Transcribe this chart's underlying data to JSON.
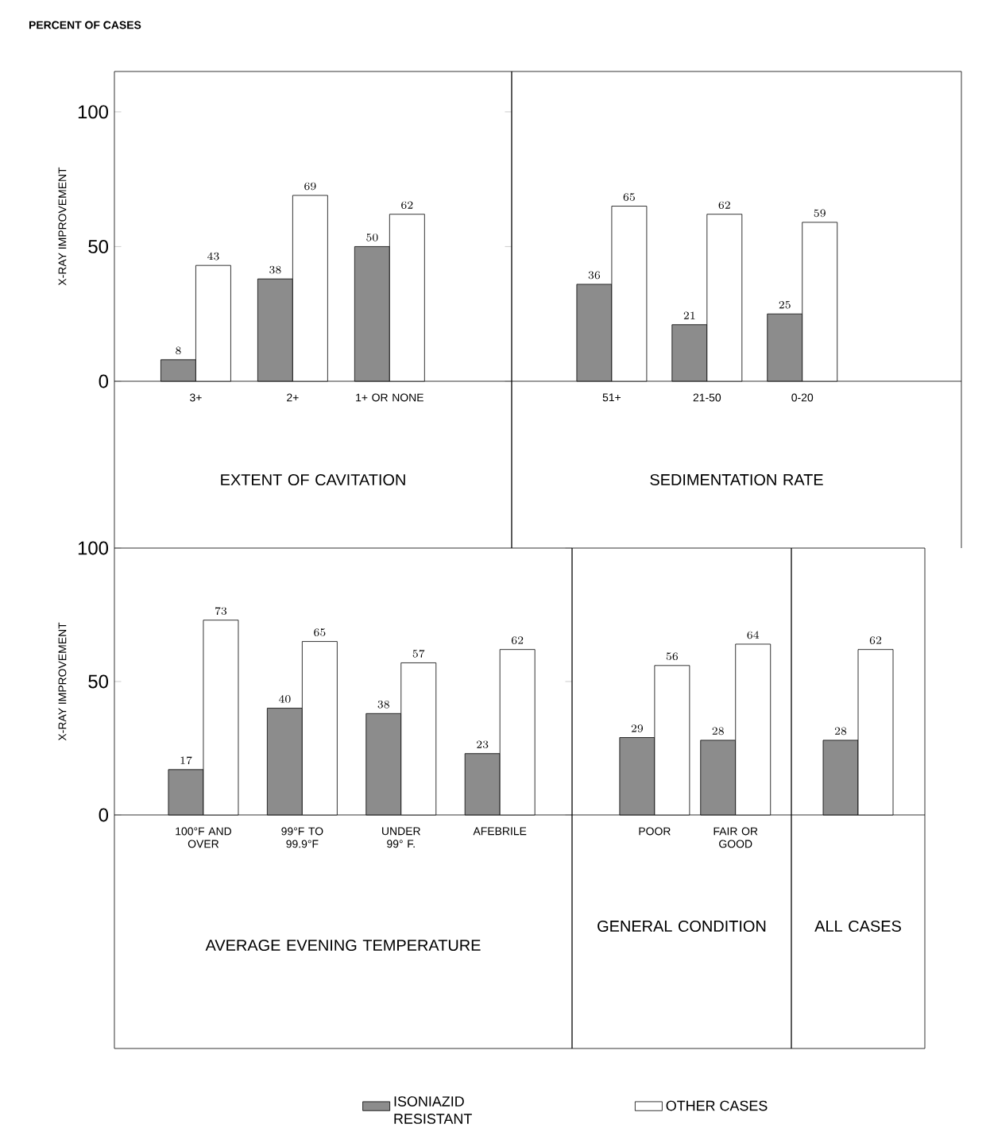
{
  "chart_data": [
    {
      "type": "bar",
      "xlabel": "EXTENT OF CAVITATION",
      "ylabel": "X-RAY IMPROVEMENT",
      "annotations": [
        "PERCENT OF CASES"
      ],
      "categories": [
        "3+",
        "2+",
        "1+ OR NONE"
      ],
      "ylim": [
        0,
        115
      ],
      "yticks": [
        0,
        50,
        100
      ],
      "data_labels": true,
      "legend": "bottom",
      "series": [
        {
          "name": "ISONIAZID RESISTANT",
          "color": "#8c8c8c",
          "values": [
            8,
            38,
            50
          ]
        },
        {
          "name": "OTHER CASES",
          "color": "#ffffff",
          "values": [
            43,
            69,
            62
          ]
        }
      ]
    },
    {
      "type": "bar",
      "xlabel": "SEDIMENTATION RATE",
      "categories": [
        "51+",
        "21-50",
        "0-20"
      ],
      "ylim": [
        0,
        115
      ],
      "yticks": [
        0,
        50,
        100
      ],
      "tick_labels": "x",
      "data_labels": true,
      "series": [
        {
          "color": "#8c8c8c",
          "values": [
            36,
            21,
            25
          ]
        },
        {
          "color": "#ffffff",
          "values": [
            65,
            62,
            59
          ]
        }
      ]
    },
    {
      "type": "bar",
      "xlabel": "AVERAGE EVENING TEMPERATURE",
      "ylabel": "X-RAY IMPROVEMENT",
      "categories": [
        "100°F AND OVER",
        "99°F TO 99.9°F",
        "UNDER 99° F.",
        "AFEBRILE"
      ],
      "ylim": [
        0,
        100
      ],
      "yticks": [
        0,
        50,
        100
      ],
      "data_labels": true,
      "series": [
        {
          "color": "#8c8c8c",
          "values": [
            17,
            40,
            38,
            23
          ]
        },
        {
          "color": "#ffffff",
          "values": [
            73,
            65,
            57,
            62
          ]
        }
      ]
    },
    {
      "type": "bar",
      "xlabel": "GENERAL CONDITION",
      "categories": [
        "POOR",
        "FAIR OR GOOD"
      ],
      "ylim": [
        0,
        100
      ],
      "yticks": [
        0,
        50,
        100
      ],
      "tick_labels": "x",
      "data_labels": true,
      "series": [
        {
          "color": "#8c8c8c",
          "values": [
            29,
            28
          ]
        },
        {
          "color": "#ffffff",
          "values": [
            56,
            64
          ]
        }
      ]
    },
    {
      "type": "bar",
      "xlabel": "ALL CASES",
      "categories": [
        null
      ],
      "ylim": [
        0,
        100
      ],
      "yticks": [
        0,
        50,
        100
      ],
      "tick_labels": false,
      "data_labels": true,
      "series": [
        {
          "color": "#8c8c8c",
          "values": [
            28
          ]
        },
        {
          "color": "#ffffff",
          "values": [
            62
          ]
        }
      ]
    }
  ]
}
